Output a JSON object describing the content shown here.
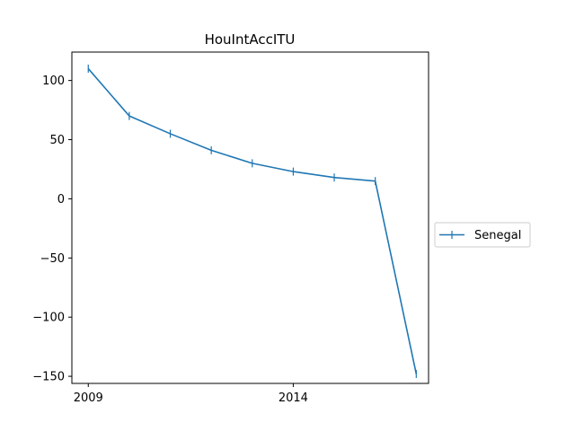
{
  "chart_data": {
    "type": "line",
    "title": "HouIntAccITU",
    "xlabel": "",
    "ylabel": "",
    "x": [
      2009,
      2010,
      2011,
      2012,
      2013,
      2014,
      2015,
      2016,
      2017
    ],
    "xlim": [
      2008.6,
      2017.3
    ],
    "ylim": [
      -156,
      124
    ],
    "x_ticks": [
      2009,
      2014
    ],
    "x_tick_labels": [
      "2009",
      "2014"
    ],
    "y_ticks": [
      100,
      50,
      0,
      -50,
      -100,
      -150
    ],
    "y_tick_labels": [
      "100",
      "50",
      "0",
      "−50",
      "−100",
      "−150"
    ],
    "grid": false,
    "legend_position": "right-outside-center",
    "series": [
      {
        "name": "Senegal",
        "color": "#1f77b4",
        "marker": "plus",
        "values": [
          110,
          70,
          55,
          41,
          30,
          23,
          18,
          15,
          -148
        ]
      }
    ]
  }
}
